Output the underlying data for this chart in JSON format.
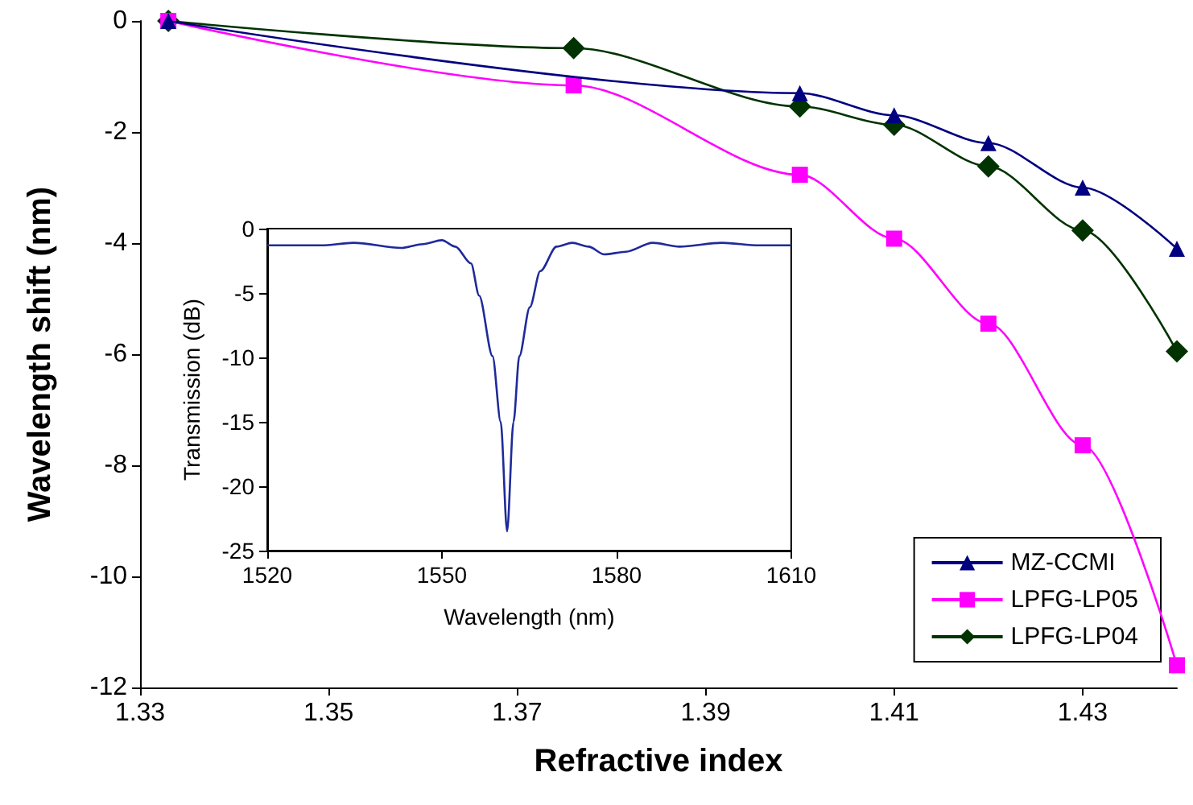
{
  "chart_data": [
    {
      "type": "line",
      "xlabel": "Refractive index",
      "ylabel": "Wavelength shift (nm)",
      "xlim": [
        1.33,
        1.44
      ],
      "xticks": [
        1.33,
        1.35,
        1.37,
        1.39,
        1.41,
        1.43
      ],
      "ylim": [
        -12,
        0
      ],
      "yticks": [
        0,
        -2,
        -4,
        -6,
        -8,
        -10,
        -12
      ],
      "grid": false,
      "legend": "bottom right",
      "series": [
        {
          "name": "MZ-CCMI",
          "color": "#000080",
          "marker": "triangle",
          "x": [
            1.333,
            1.4,
            1.41,
            1.42,
            1.43,
            1.44
          ],
          "values": [
            0,
            -1.3,
            -1.7,
            -2.2,
            -3.0,
            -4.1
          ]
        },
        {
          "name": "LPFG-LP05",
          "color": "#ff00ff",
          "marker": "square",
          "x": [
            1.333,
            1.376,
            1.4,
            1.41,
            1.42,
            1.43,
            1.44
          ],
          "values": [
            0,
            -1.16,
            -2.77,
            -3.92,
            -5.45,
            -7.64,
            -11.6
          ]
        },
        {
          "name": "LPFG-LP04",
          "color": "#003300",
          "marker": "diamond",
          "x": [
            1.333,
            1.376,
            1.4,
            1.41,
            1.42,
            1.43,
            1.44
          ],
          "values": [
            0,
            -0.49,
            -1.54,
            -1.87,
            -2.62,
            -3.77,
            -5.95
          ]
        }
      ]
    },
    {
      "type": "line",
      "xlabel": "Wavelength (nm)",
      "ylabel": "Transmission (dB)",
      "xlim": [
        1520,
        1610
      ],
      "xticks": [
        1520,
        1550,
        1580,
        1610
      ],
      "ylim": [
        -25,
        0
      ],
      "yticks": [
        0,
        -5,
        -10,
        -15,
        -20,
        -25
      ],
      "grid": false,
      "legend": false,
      "marker": "none",
      "series": [
        {
          "color": "#1f2a9a",
          "x": [
            1520,
            1529.3,
            1534.8,
            1543.1,
            1546.8,
            1550,
            1552.3,
            1555,
            1556.4,
            1558.7,
            1560.1,
            1561.2,
            1562.3,
            1563.3,
            1565.1,
            1566.9,
            1569.7,
            1572.4,
            1575.2,
            1577.9,
            1581.6,
            1586.2,
            1590.8,
            1598.1,
            1604.5,
            1610
          ],
          "values": [
            -1.3,
            -1.3,
            -1.1,
            -1.5,
            -1.2,
            -0.9,
            -1.4,
            -2.7,
            -5.2,
            -9.9,
            -15,
            -23.5,
            -15,
            -9.9,
            -6.1,
            -3.3,
            -1.4,
            -1.1,
            -1.4,
            -2.0,
            -1.8,
            -1.1,
            -1.4,
            -1.1,
            -1.3,
            -1.3
          ]
        }
      ]
    }
  ]
}
